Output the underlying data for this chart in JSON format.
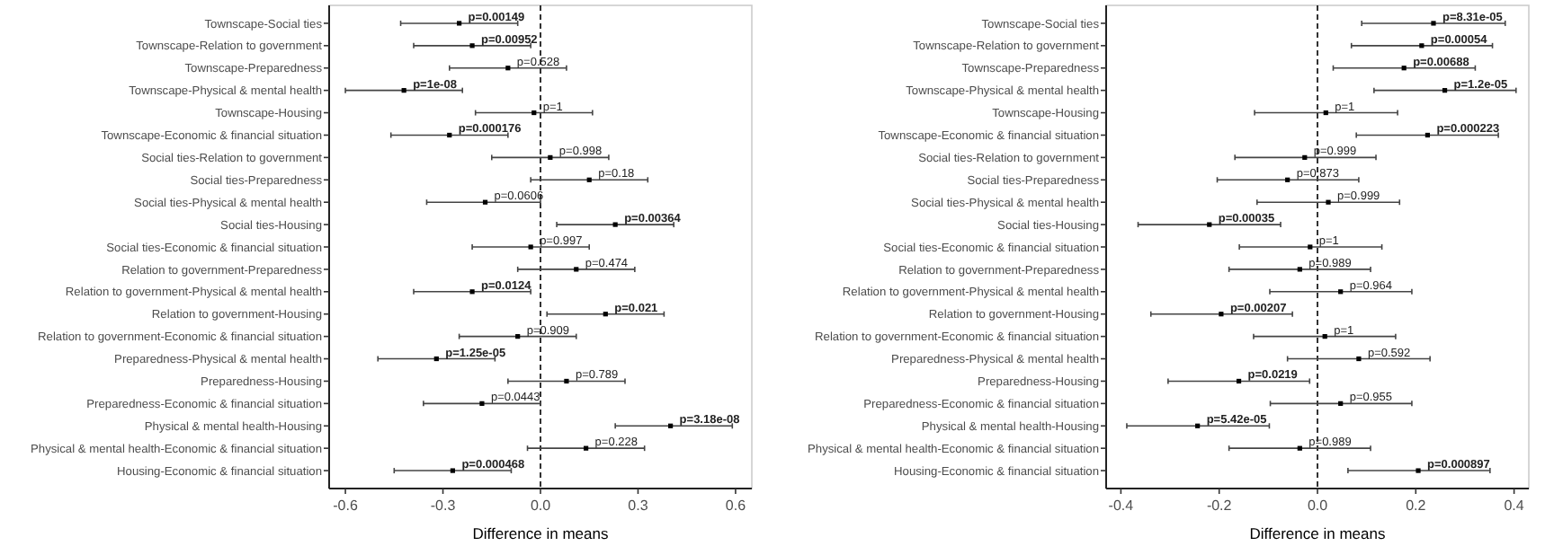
{
  "chart_data": [
    {
      "type": "scatter",
      "orientation": "horizontal",
      "categories": [
        "Townscape-Social ties",
        "Townscape-Relation to government",
        "Townscape-Preparedness",
        "Townscape-Physical & mental health",
        "Townscape-Housing",
        "Townscape-Economic & financial situation",
        "Social ties-Relation to government",
        "Social ties-Preparedness",
        "Social ties-Physical & mental health",
        "Social ties-Housing",
        "Social ties-Economic & financial situation",
        "Relation to government-Preparedness",
        "Relation to government-Physical & mental health",
        "Relation to government-Housing",
        "Relation to government-Economic & financial situation",
        "Preparedness-Physical & mental health",
        "Preparedness-Housing",
        "Preparedness-Economic & financial situation",
        "Physical & mental health-Housing",
        "Physical & mental health-Economic & financial situation",
        "Housing-Economic & financial situation"
      ],
      "values": [
        -0.25,
        -0.21,
        -0.1,
        -0.42,
        -0.02,
        -0.28,
        0.03,
        0.15,
        -0.17,
        0.23,
        -0.03,
        0.11,
        -0.21,
        0.2,
        -0.07,
        -0.32,
        0.08,
        -0.18,
        0.4,
        0.14,
        -0.27
      ],
      "errors": [
        [
          -0.43,
          -0.07
        ],
        [
          -0.39,
          -0.03
        ],
        [
          -0.28,
          0.08
        ],
        [
          -0.6,
          -0.24
        ],
        [
          -0.2,
          0.16
        ],
        [
          -0.46,
          -0.1
        ],
        [
          -0.15,
          0.21
        ],
        [
          -0.03,
          0.33
        ],
        [
          -0.35,
          0.0
        ],
        [
          0.05,
          0.41
        ],
        [
          -0.21,
          0.15
        ],
        [
          -0.07,
          0.29
        ],
        [
          -0.39,
          -0.03
        ],
        [
          0.02,
          0.38
        ],
        [
          -0.25,
          0.11
        ],
        [
          -0.5,
          -0.14
        ],
        [
          -0.1,
          0.26
        ],
        [
          -0.36,
          0.0
        ],
        [
          0.23,
          0.59
        ],
        [
          -0.04,
          0.32
        ],
        [
          -0.45,
          -0.09
        ]
      ],
      "annotations": [
        {
          "text": "p=0.00149",
          "x": -0.25,
          "y": "Townscape-Social ties"
        },
        {
          "text": "p=0.00952",
          "x": -0.21,
          "y": "Townscape-Relation to government"
        },
        {
          "text": "p=0.528",
          "x": -0.1,
          "y": "Townscape-Preparedness"
        },
        {
          "text": "p=1e-08",
          "x": -0.42,
          "y": "Townscape-Physical & mental health"
        },
        {
          "text": "p=1",
          "x": -0.02,
          "y": "Townscape-Housing"
        },
        {
          "text": "p=0.000176",
          "x": -0.28,
          "y": "Townscape-Economic & financial situation"
        },
        {
          "text": "p=0.998",
          "x": 0.03,
          "y": "Social ties-Relation to government"
        },
        {
          "text": "p=0.18",
          "x": 0.15,
          "y": "Social ties-Preparedness"
        },
        {
          "text": "p=0.0606",
          "x": -0.17,
          "y": "Social ties-Physical & mental health"
        },
        {
          "text": "p=0.00364",
          "x": 0.23,
          "y": "Social ties-Housing"
        },
        {
          "text": "p=0.997",
          "x": -0.03,
          "y": "Social ties-Economic & financial situation"
        },
        {
          "text": "p=0.474",
          "x": 0.11,
          "y": "Relation to government-Preparedness"
        },
        {
          "text": "p=0.0124",
          "x": -0.21,
          "y": "Relation to government-Physical & mental health"
        },
        {
          "text": "p=0.021",
          "x": 0.2,
          "y": "Relation to government-Housing"
        },
        {
          "text": "p=0.909",
          "x": -0.07,
          "y": "Relation to government-Economic & financial situation"
        },
        {
          "text": "p=1.25e-05",
          "x": -0.32,
          "y": "Preparedness-Physical & mental health"
        },
        {
          "text": "p=0.789",
          "x": 0.08,
          "y": "Preparedness-Housing"
        },
        {
          "text": "p=0.0443",
          "x": -0.18,
          "y": "Preparedness-Economic & financial situation"
        },
        {
          "text": "p=3.18e-08",
          "x": 0.4,
          "y": "Physical & mental health-Housing"
        },
        {
          "text": "p=0.228",
          "x": 0.14,
          "y": "Physical & mental health-Economic & financial situation"
        },
        {
          "text": "p=0.000468",
          "x": -0.27,
          "y": "Housing-Economic & financial situation"
        }
      ],
      "color": "#000000",
      "marker": "square",
      "xlim": [
        -0.65,
        0.65
      ],
      "xticks": [
        {
          "value": -0.6,
          "label": "-0.6"
        },
        {
          "value": -0.3,
          "label": "-0.3"
        },
        {
          "value": 0,
          "label": "0.0"
        },
        {
          "value": 0.3,
          "label": "0.3"
        },
        {
          "value": 0.6,
          "label": "0.6"
        }
      ],
      "xlabel": "Difference in means",
      "ref_lines": [
        {
          "axis": "x",
          "value": 0,
          "line_style": "dashed",
          "color": "#000000"
        }
      ]
    },
    {
      "type": "scatter",
      "orientation": "horizontal",
      "categories": [
        "Townscape-Social ties",
        "Townscape-Relation to government",
        "Townscape-Preparedness",
        "Townscape-Physical & mental health",
        "Townscape-Housing",
        "Townscape-Economic & financial situation",
        "Social ties-Relation to government",
        "Social ties-Preparedness",
        "Social ties-Physical & mental health",
        "Social ties-Housing",
        "Social ties-Economic & financial situation",
        "Relation to government-Preparedness",
        "Relation to government-Physical & mental health",
        "Relation to government-Housing",
        "Relation to government-Economic & financial situation",
        "Preparedness-Physical & mental health",
        "Preparedness-Housing",
        "Preparedness-Economic & financial situation",
        "Physical & mental health-Housing",
        "Physical & mental health-Economic & financial situation",
        "Housing-Economic & financial situation"
      ],
      "values": [
        0.236,
        0.212,
        0.176,
        0.259,
        0.017,
        0.224,
        -0.026,
        -0.061,
        0.022,
        -0.22,
        -0.015,
        -0.036,
        0.047,
        -0.196,
        0.015,
        0.084,
        -0.16,
        0.047,
        -0.244,
        -0.036,
        0.205
      ],
      "errors": [
        [
          0.09,
          0.382
        ],
        [
          0.069,
          0.356
        ],
        [
          0.032,
          0.321
        ],
        [
          0.115,
          0.404
        ],
        [
          -0.128,
          0.163
        ],
        [
          0.079,
          0.368
        ],
        [
          -0.168,
          0.119
        ],
        [
          -0.204,
          0.084
        ],
        [
          -0.123,
          0.167
        ],
        [
          -0.365,
          -0.075
        ],
        [
          -0.159,
          0.131
        ],
        [
          -0.18,
          0.108
        ],
        [
          -0.097,
          0.192
        ],
        [
          -0.339,
          -0.051
        ],
        [
          -0.13,
          0.159
        ],
        [
          -0.061,
          0.229
        ],
        [
          -0.304,
          -0.016
        ],
        [
          -0.096,
          0.192
        ],
        [
          -0.388,
          -0.098
        ],
        [
          -0.18,
          0.108
        ],
        [
          0.062,
          0.351
        ]
      ],
      "annotations": [
        {
          "text": "p=8.31e-05",
          "x": 0.236,
          "y": "Townscape-Social ties"
        },
        {
          "text": "p=0.00054",
          "x": 0.212,
          "y": "Townscape-Relation to government"
        },
        {
          "text": "p=0.00688",
          "x": 0.176,
          "y": "Townscape-Preparedness"
        },
        {
          "text": "p=1.2e-05",
          "x": 0.259,
          "y": "Townscape-Physical & mental health"
        },
        {
          "text": "p=1",
          "x": 0.017,
          "y": "Townscape-Housing"
        },
        {
          "text": "p=0.000223",
          "x": 0.224,
          "y": "Townscape-Economic & financial situation"
        },
        {
          "text": "p=0.999",
          "x": -0.026,
          "y": "Social ties-Relation to government"
        },
        {
          "text": "p=0.873",
          "x": -0.061,
          "y": "Social ties-Preparedness"
        },
        {
          "text": "p=0.999",
          "x": 0.022,
          "y": "Social ties-Physical & mental health"
        },
        {
          "text": "p=0.00035",
          "x": -0.22,
          "y": "Social ties-Housing"
        },
        {
          "text": "p=1",
          "x": -0.015,
          "y": "Social ties-Economic & financial situation"
        },
        {
          "text": "p=0.989",
          "x": -0.036,
          "y": "Relation to government-Preparedness"
        },
        {
          "text": "p=0.964",
          "x": 0.047,
          "y": "Relation to government-Physical & mental health"
        },
        {
          "text": "p=0.00207",
          "x": -0.196,
          "y": "Relation to government-Housing"
        },
        {
          "text": "p=1",
          "x": 0.015,
          "y": "Relation to government-Economic & financial situation"
        },
        {
          "text": "p=0.592",
          "x": 0.084,
          "y": "Preparedness-Physical & mental health"
        },
        {
          "text": "p=0.0219",
          "x": -0.16,
          "y": "Preparedness-Housing"
        },
        {
          "text": "p=0.955",
          "x": 0.047,
          "y": "Preparedness-Economic & financial situation"
        },
        {
          "text": "p=5.42e-05",
          "x": -0.244,
          "y": "Physical & mental health-Housing"
        },
        {
          "text": "p=0.989",
          "x": -0.036,
          "y": "Physical & mental health-Economic & financial situation"
        },
        {
          "text": "p=0.000897",
          "x": 0.205,
          "y": "Housing-Economic & financial situation"
        }
      ],
      "color": "#000000",
      "marker": "square",
      "xlim": [
        -0.43,
        0.43
      ],
      "xticks": [
        {
          "value": -0.4,
          "label": "-0.4"
        },
        {
          "value": -0.2,
          "label": "-0.2"
        },
        {
          "value": 0,
          "label": "0.0"
        },
        {
          "value": 0.2,
          "label": "0.2"
        },
        {
          "value": 0.4,
          "label": "0.4"
        }
      ],
      "xlabel": "Difference in means",
      "ref_lines": [
        {
          "axis": "x",
          "value": 0,
          "line_style": "dashed",
          "color": "#000000"
        }
      ]
    }
  ]
}
